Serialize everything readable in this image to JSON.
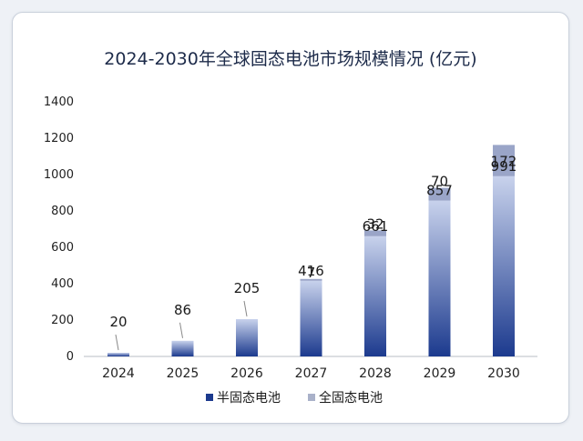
{
  "chart_data": {
    "type": "bar",
    "title": "2024-2030年全球固态电池市场规模情况 (亿元)",
    "categories": [
      "2024",
      "2025",
      "2026",
      "2027",
      "2028",
      "2029",
      "2030"
    ],
    "series": [
      {
        "name": "半固态电池",
        "values": [
          20,
          86,
          205,
          416,
          661,
          857,
          991
        ]
      },
      {
        "name": "全固态电池",
        "values": [
          null,
          null,
          null,
          7,
          32,
          70,
          172
        ]
      }
    ],
    "ylim": [
      0,
      1400
    ],
    "yticks": [
      0,
      200,
      400,
      600,
      800,
      1000,
      1200,
      1400
    ],
    "xlabel": "",
    "ylabel": "",
    "legend": "bottom",
    "grid": false
  },
  "colors": {
    "semi_dark": "#1c3a8e",
    "semi_light": "#c8d2ec",
    "full": "#9aa5c8",
    "legend_semi": "#1c3a8e",
    "legend_full": "#a9b1c9"
  }
}
